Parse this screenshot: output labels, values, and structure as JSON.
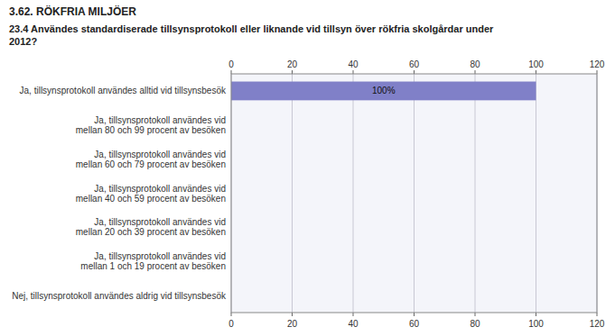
{
  "chart_data": {
    "type": "bar",
    "orientation": "horizontal",
    "title": "3.62. RÖKFRIA MILJÖER",
    "subtitle": "23.4 Användes standardiserade tillsynsprotokoll eller liknande vid tillsyn över rökfria skolgårdar  under\n2012?",
    "categories": [
      "Ja, tillsynsprotokoll användes alltid vid tillsynsbesök",
      "Ja, tillsynsprotokoll användes vid\nmellan 80 och 99 procent av besöken",
      "Ja, tillsynsprotokoll användes vid\nmellan 60 och 79 procent av besöken",
      "Ja, tillsynsprotokoll användes vid\nmellan 40 och 59 procent av besöken",
      "Ja, tillsynsprotokoll användes vid\nmellan 20 och 39 procent av besöken",
      "Ja, tillsynsprotokoll användes vid\nmellan 1 och 19 procent av besöken",
      "Nej, tillsynsprotokoll användes aldrig vid tillsynsbesök"
    ],
    "values": [
      100,
      0,
      0,
      0,
      0,
      0,
      0
    ],
    "value_labels": [
      "100%",
      null,
      null,
      null,
      null,
      null,
      null
    ],
    "data_labels": true,
    "color": "#8080c8",
    "xlim": [
      0,
      120
    ],
    "xticks": [
      0,
      20,
      40,
      60,
      80,
      100,
      120
    ],
    "grid": true
  }
}
